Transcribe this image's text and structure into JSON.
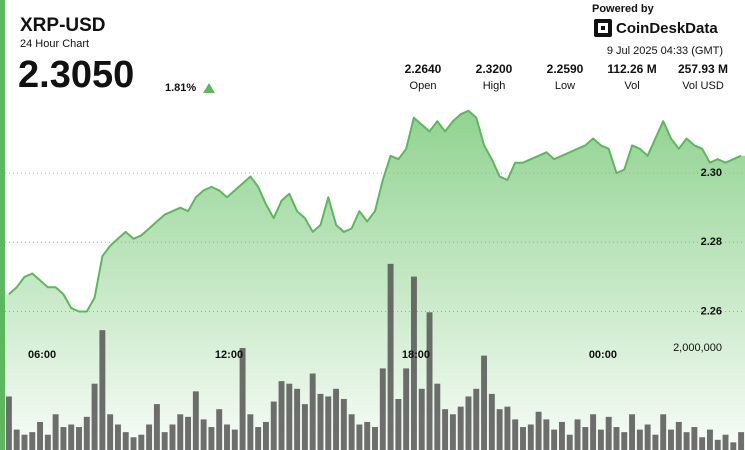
{
  "header": {
    "symbol": "XRP-USD",
    "subtitle": "24 Hour Chart",
    "price": "2.3050",
    "change": "1.81%",
    "powered_by": "Powered by",
    "brand": "CoinDeskData",
    "timestamp": "9 Jul 2025 04:33 (GMT)",
    "stats": [
      {
        "value": "2.2640",
        "label": "Open"
      },
      {
        "value": "2.3200",
        "label": "High"
      },
      {
        "value": "2.2590",
        "label": "Low"
      },
      {
        "value": "112.26 M",
        "label": "Vol"
      },
      {
        "value": "257.93 M",
        "label": "Vol USD"
      }
    ]
  },
  "chart_data": {
    "type": "line",
    "categories": [
      null,
      null,
      null,
      null,
      "06:00",
      null,
      null,
      null,
      null,
      null,
      null,
      null,
      null,
      null,
      null,
      null,
      null,
      null,
      null,
      null,
      null,
      null,
      null,
      null,
      null,
      null,
      null,
      null,
      "12:00",
      null,
      null,
      null,
      null,
      null,
      null,
      null,
      null,
      null,
      null,
      null,
      null,
      null,
      null,
      null,
      null,
      null,
      null,
      null,
      null,
      null,
      null,
      null,
      "18:00",
      null,
      null,
      null,
      null,
      null,
      null,
      null,
      null,
      null,
      null,
      null,
      null,
      null,
      null,
      null,
      null,
      null,
      null,
      null,
      null,
      null,
      null,
      null,
      "00:00",
      null,
      null,
      null,
      null,
      null,
      null,
      null,
      null,
      null,
      null,
      null,
      null,
      null,
      null,
      null,
      null,
      null,
      null
    ],
    "series": [
      {
        "type": "line",
        "color": "#5cb85c",
        "values": [
          2.265,
          2.267,
          2.27,
          2.271,
          2.269,
          2.267,
          2.267,
          2.265,
          2.261,
          2.26,
          2.26,
          2.264,
          2.276,
          2.279,
          2.281,
          2.283,
          2.281,
          2.282,
          2.284,
          2.286,
          2.288,
          2.289,
          2.29,
          2.289,
          2.293,
          2.295,
          2.296,
          2.295,
          2.293,
          2.295,
          2.297,
          2.299,
          2.296,
          2.291,
          2.287,
          2.292,
          2.294,
          2.289,
          2.287,
          2.283,
          2.285,
          2.293,
          2.285,
          2.283,
          2.284,
          2.289,
          2.286,
          2.289,
          2.298,
          2.305,
          2.304,
          2.307,
          2.316,
          2.314,
          2.312,
          2.315,
          2.312,
          2.315,
          2.317,
          2.318,
          2.316,
          2.308,
          2.304,
          2.299,
          2.298,
          2.303,
          2.303,
          2.304,
          2.305,
          2.306,
          2.304,
          2.305,
          2.306,
          2.307,
          2.308,
          2.31,
          2.308,
          2.307,
          2.3,
          2.301,
          2.308,
          2.307,
          2.305,
          2.31,
          2.315,
          2.31,
          2.307,
          2.31,
          2.308,
          2.307,
          2.303,
          2.304,
          2.303,
          2.304,
          2.305
        ]
      },
      {
        "type": "bar",
        "axis": "y2",
        "color": "#555555",
        "values": [
          1050000,
          400000,
          300000,
          350000,
          550000,
          300000,
          700000,
          450000,
          500000,
          450000,
          650000,
          1300000,
          2350000,
          700000,
          500000,
          350000,
          250000,
          300000,
          500000,
          900000,
          350000,
          500000,
          700000,
          650000,
          1150000,
          600000,
          450000,
          800000,
          500000,
          400000,
          2000000,
          700000,
          450000,
          550000,
          950000,
          1350000,
          1300000,
          1200000,
          900000,
          1500000,
          1100000,
          1050000,
          1200000,
          1000000,
          700000,
          500000,
          550000,
          450000,
          1600000,
          3650000,
          1000000,
          1600000,
          3400000,
          1200000,
          2700000,
          1300000,
          800000,
          700000,
          850000,
          1050000,
          1200000,
          1850000,
          1100000,
          800000,
          850000,
          600000,
          450000,
          500000,
          750000,
          600000,
          400000,
          550000,
          300000,
          600000,
          450000,
          700000,
          400000,
          650000,
          450000,
          350000,
          700000,
          400000,
          500000,
          300000,
          700000,
          400000,
          550000,
          350000,
          450000,
          250000,
          400000,
          200000,
          300000,
          150000,
          350000
        ]
      }
    ],
    "ylim": [
      2.22,
      2.35
    ],
    "yticks": [
      2.26,
      2.28,
      {
        "value": 2.3,
        "label": "2.30"
      }
    ],
    "y2lim": [
      0,
      8000000
    ],
    "y2ticks": [
      {
        "value": 2000000,
        "label": "2,000,000"
      }
    ],
    "grid": true
  }
}
